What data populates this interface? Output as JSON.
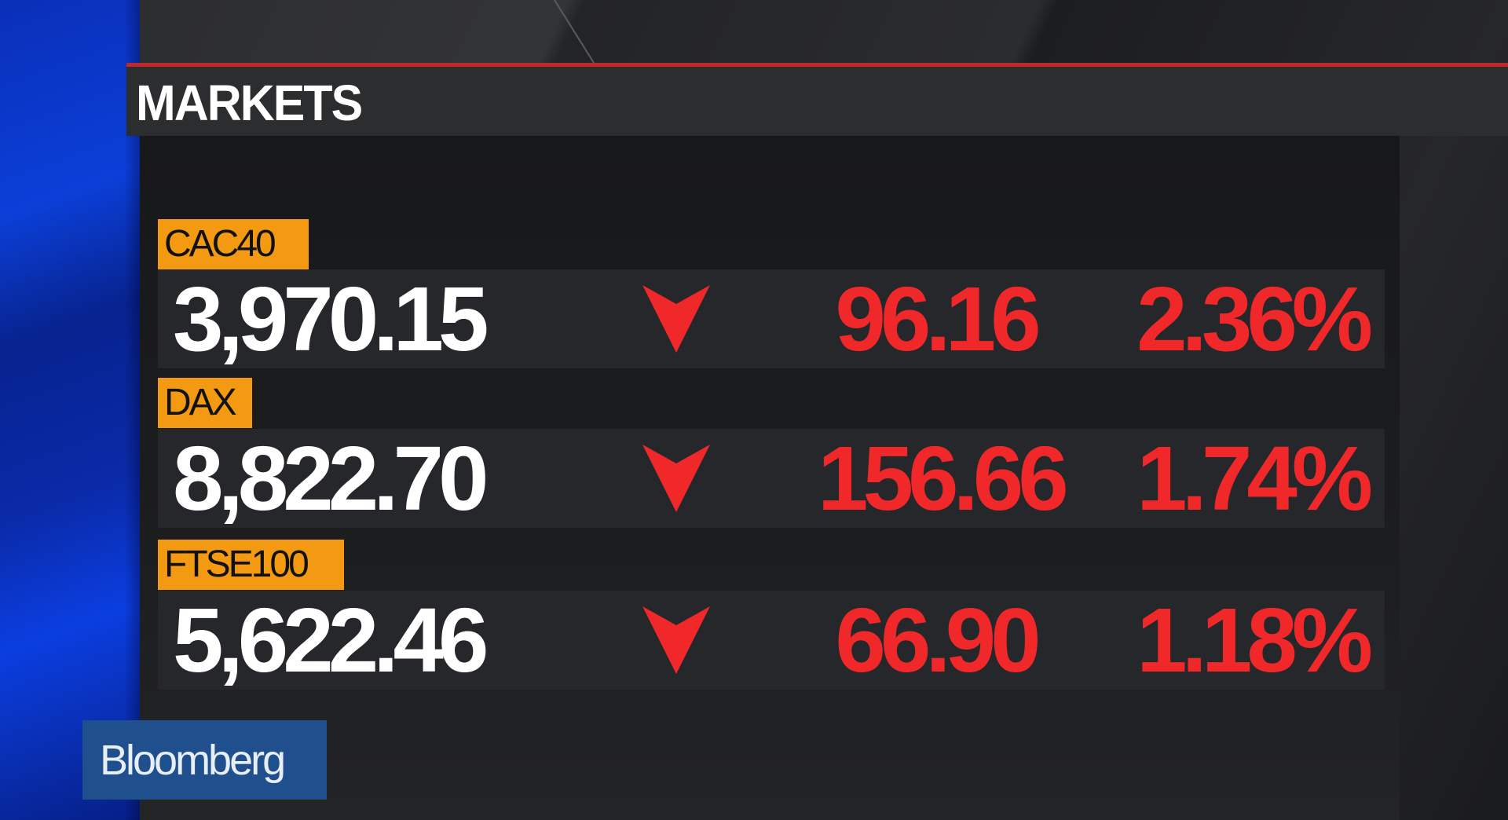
{
  "header": {
    "title": "MARKETS",
    "accent_color": "#c3262b"
  },
  "markets": [
    {
      "name": "CAC40",
      "value": "3,970.15",
      "direction": "down",
      "change": "96.16",
      "percent": "2.36%"
    },
    {
      "name": "DAX",
      "value": "8,822.70",
      "direction": "down",
      "change": "156.66",
      "percent": "1.74%"
    },
    {
      "name": "FTSE100",
      "value": "5,622.46",
      "direction": "down",
      "change": "66.90",
      "percent": "1.18%"
    }
  ],
  "colors": {
    "tag": "#f39a12",
    "down": "#f0282a"
  },
  "icons": {
    "direction": "down-arrow-icon"
  },
  "logo": {
    "text": "Bloomberg"
  }
}
